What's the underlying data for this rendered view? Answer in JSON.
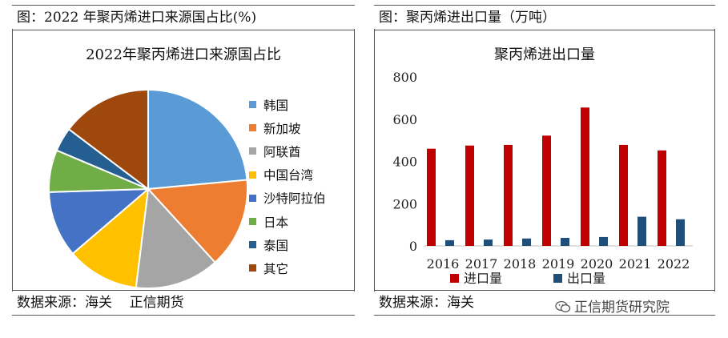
{
  "left_panel": {
    "header": "图：2022 年聚丙烯进口来源国占比(%)",
    "footer": "数据来源：海关    正信期货"
  },
  "right_panel": {
    "header": "图：聚丙烯进出口量（万吨）",
    "footer": "数据来源：海关",
    "watermark": "正信期货研究院"
  },
  "chart_data": [
    {
      "type": "pie",
      "title": "2022年聚丙烯进口来源国占比",
      "slices": [
        {
          "label": "韩国",
          "value": 24,
          "color": "#5B9BD5"
        },
        {
          "label": "新加坡",
          "value": 15,
          "color": "#ED7D31"
        },
        {
          "label": "阿联酋",
          "value": 14,
          "color": "#A5A5A5"
        },
        {
          "label": "中国台湾",
          "value": 12,
          "color": "#FFC000"
        },
        {
          "label": "沙特阿拉伯",
          "value": 11,
          "color": "#4472C4"
        },
        {
          "label": "日本",
          "value": 7,
          "color": "#70AD47"
        },
        {
          "label": "泰国",
          "value": 4,
          "color": "#255E91"
        },
        {
          "label": "其它",
          "value": 15,
          "color": "#9E480E"
        }
      ],
      "legend_position": "right"
    },
    {
      "type": "bar",
      "title": "聚丙烯进出口量",
      "categories": [
        "2016",
        "2017",
        "2018",
        "2019",
        "2020",
        "2021",
        "2022"
      ],
      "series": [
        {
          "name": "进口量",
          "values": [
            460,
            475,
            478,
            522,
            655,
            478,
            452
          ],
          "color": "#C00000"
        },
        {
          "name": "出口量",
          "values": [
            27,
            30,
            35,
            38,
            42,
            138,
            126
          ],
          "color": "#1F4E79"
        }
      ],
      "ylim": [
        0,
        800
      ],
      "yticks": [
        0,
        200,
        400,
        600,
        800
      ],
      "legend_position": "bottom",
      "grid": false
    }
  ]
}
